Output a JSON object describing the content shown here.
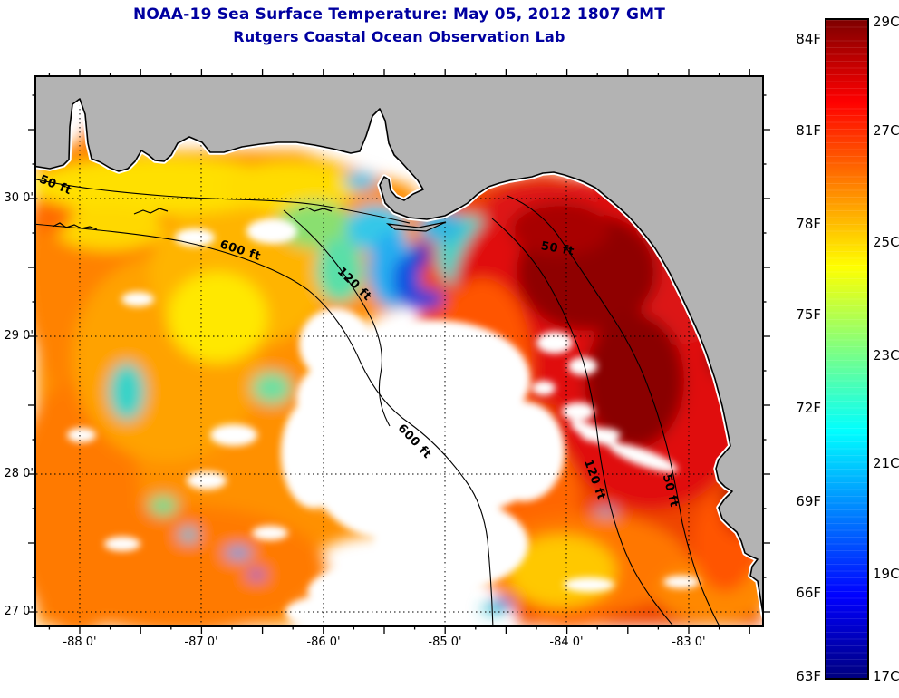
{
  "title": {
    "line1": "NOAA-19 Sea Surface Temperature:  May 05, 2012 1807 GMT",
    "line2": "Rutgers Coastal Ocean Observation Lab"
  },
  "axes": {
    "x_tick_labels": [
      "-88 0'",
      "-87 0'",
      "-86 0'",
      "-85 0'",
      "-84 0'",
      "-83 0'"
    ],
    "y_tick_labels": [
      "30 0'",
      "29 0'",
      "28 0'",
      "27 0'"
    ]
  },
  "colorbar": {
    "f_labels": [
      "84F",
      "81F",
      "78F",
      "75F",
      "72F",
      "69F",
      "66F",
      "63F"
    ],
    "c_labels": [
      "29C",
      "27C",
      "25C",
      "23C",
      "21C",
      "19C",
      "17C"
    ]
  },
  "map": {
    "contour_labels": [
      "50 ft",
      "600 ft",
      "120 ft",
      "50 ft",
      "600 ft",
      "120 ft",
      "50 ft"
    ],
    "land_color": "#b3b3b3",
    "cloud_color": "#ffffff"
  },
  "chart_data": {
    "type": "heatmap",
    "title": "NOAA-19 Sea Surface Temperature:  May 05, 2012 1807 GMT",
    "subtitle": "Rutgers Coastal Ocean Observation Lab",
    "colormap": "jet",
    "value_axis": {
      "units_left": "F",
      "units_right": "C",
      "min_c": 17,
      "max_c": 29,
      "f_ticks": [
        84,
        81,
        78,
        75,
        72,
        69,
        66,
        63
      ],
      "c_ticks": [
        29,
        27,
        25,
        23,
        21,
        19,
        17
      ]
    },
    "x_axis": {
      "lon_ticks_deg": [
        -88,
        -87,
        -86,
        -85,
        -84,
        -83
      ]
    },
    "y_axis": {
      "lat_ticks_deg": [
        30,
        29,
        28,
        27
      ]
    },
    "depth_contours_ft": [
      50,
      120,
      600
    ],
    "grid": "dotted at whole degrees",
    "legend_position": "right colorbar"
  }
}
